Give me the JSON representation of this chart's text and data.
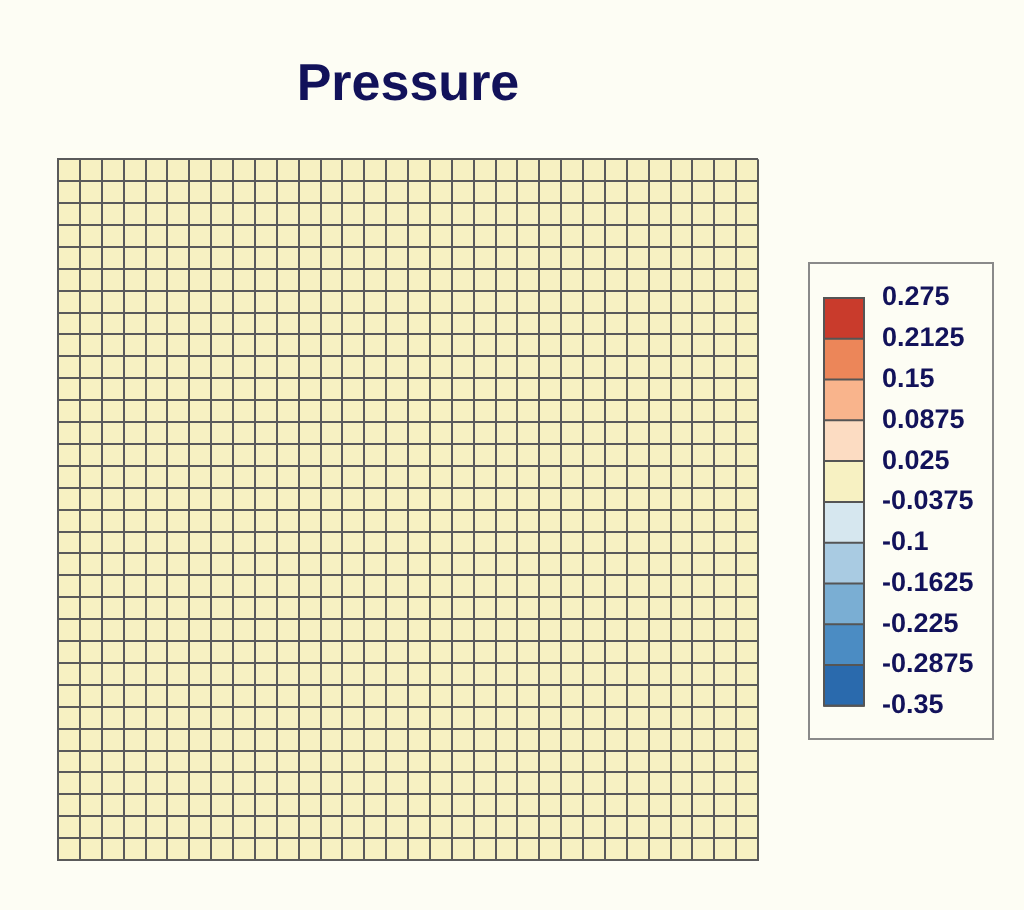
{
  "chart_data": {
    "type": "heatmap",
    "title": "Pressure",
    "categories": [
      null,
      null,
      null,
      null,
      null,
      null,
      null,
      null,
      null,
      null,
      null,
      null,
      null,
      null,
      null,
      null,
      null,
      null,
      null,
      null,
      null,
      null,
      null,
      null,
      null,
      null,
      null,
      null,
      null,
      null,
      null,
      null
    ],
    "y_categories": [
      null,
      null,
      null,
      null,
      null,
      null,
      null,
      null,
      null,
      null,
      null,
      null,
      null,
      null,
      null,
      null,
      null,
      null,
      null,
      null,
      null,
      null,
      null,
      null,
      null,
      null,
      null,
      null,
      null,
      null,
      null,
      null
    ],
    "cells": [
      [
        0,
        0,
        0,
        0,
        0,
        0,
        0,
        0,
        0,
        0,
        0,
        0,
        0,
        0,
        0,
        0,
        0,
        0,
        0,
        0,
        0,
        0,
        0,
        0,
        0,
        0,
        0,
        0,
        0,
        0,
        0,
        0
      ],
      [
        0,
        0,
        0,
        0,
        0,
        0,
        0,
        0,
        0,
        0,
        0,
        0,
        0,
        0,
        0,
        0,
        0,
        0,
        0,
        0,
        0,
        0,
        0,
        0,
        0,
        0,
        0,
        0,
        0,
        0,
        0,
        0
      ],
      [
        0,
        0,
        0,
        0,
        0,
        0,
        0,
        0,
        0,
        0,
        0,
        0,
        0,
        0,
        0,
        0,
        0,
        0,
        0,
        0,
        0,
        0,
        0,
        0,
        0,
        0,
        0,
        0,
        0,
        0,
        0,
        0
      ],
      [
        0,
        0,
        0,
        0,
        0,
        0,
        0,
        0,
        0,
        0,
        0,
        0,
        0,
        0,
        0,
        0,
        0,
        0,
        0,
        0,
        0,
        0,
        0,
        0,
        0,
        0,
        0,
        0,
        0,
        0,
        0,
        0
      ],
      [
        0,
        0,
        0,
        0,
        0,
        0,
        0,
        0,
        0,
        0,
        0,
        0,
        0,
        0,
        0,
        0,
        0,
        0,
        0,
        0,
        0,
        0,
        0,
        0,
        0,
        0,
        0,
        0,
        0,
        0,
        0,
        0
      ],
      [
        0,
        0,
        0,
        0,
        0,
        0,
        0,
        0,
        0,
        0,
        0,
        0,
        0,
        0,
        0,
        0,
        0,
        0,
        0,
        0,
        0,
        0,
        0,
        0,
        0,
        0,
        0,
        0,
        0,
        0,
        0,
        0
      ],
      [
        0,
        0,
        0,
        0,
        0,
        0,
        0,
        0,
        0,
        0,
        0,
        0,
        0,
        0,
        0,
        0,
        0,
        0,
        0,
        0,
        0,
        0,
        0,
        0,
        0,
        0,
        0,
        0,
        0,
        0,
        0,
        0
      ],
      [
        0,
        0,
        0,
        0,
        0,
        0,
        0,
        0,
        0,
        0,
        0,
        0,
        0,
        0,
        0,
        0,
        0,
        0,
        0,
        0,
        0,
        0,
        0,
        0,
        0,
        0,
        0,
        0,
        0,
        0,
        0,
        0
      ],
      [
        0,
        0,
        0,
        0,
        0,
        0,
        0,
        0,
        0,
        0,
        0,
        0,
        0,
        0,
        0,
        0,
        0,
        0,
        0,
        0,
        0,
        0,
        0,
        0,
        0,
        0,
        0,
        0,
        0,
        0,
        0,
        0
      ],
      [
        0,
        0,
        0,
        0,
        0,
        0,
        0,
        0,
        0,
        0,
        0,
        0,
        0,
        0,
        0,
        0,
        0,
        0,
        0,
        0,
        0,
        0,
        0,
        0,
        0,
        0,
        0,
        0,
        0,
        0,
        0,
        0
      ],
      [
        0,
        0,
        0,
        0,
        0,
        0,
        0,
        0,
        0,
        0,
        0,
        0,
        0,
        0,
        0,
        0,
        0,
        0,
        0,
        0,
        0,
        0,
        0,
        0,
        0,
        0,
        0,
        0,
        0,
        0,
        0,
        0
      ],
      [
        0,
        0,
        0,
        0,
        0,
        0,
        0,
        0,
        0,
        0,
        0,
        0,
        0,
        0,
        0,
        0,
        0,
        0,
        0,
        0,
        0,
        0,
        0,
        0,
        0,
        0,
        0,
        0,
        0,
        0,
        0,
        0
      ],
      [
        0,
        0,
        0,
        0,
        0,
        0,
        0,
        0,
        0,
        0,
        0,
        0,
        0,
        0,
        0,
        0,
        0,
        0,
        0,
        0,
        0,
        0,
        0,
        0,
        0,
        0,
        0,
        0,
        0,
        0,
        0,
        0
      ],
      [
        0,
        0,
        0,
        0,
        0,
        0,
        0,
        0,
        0,
        0,
        0,
        0,
        0,
        0,
        0,
        0,
        0,
        0,
        0,
        0,
        0,
        0,
        0,
        0,
        0,
        0,
        0,
        0,
        0,
        0,
        0,
        0
      ],
      [
        0,
        0,
        0,
        0,
        0,
        0,
        0,
        0,
        0,
        0,
        0,
        0,
        0,
        0,
        0,
        0,
        0,
        0,
        0,
        0,
        0,
        0,
        0,
        0,
        0,
        0,
        0,
        0,
        0,
        0,
        0,
        0
      ],
      [
        0,
        0,
        0,
        0,
        0,
        0,
        0,
        0,
        0,
        0,
        0,
        0,
        0,
        0,
        0,
        0,
        0,
        0,
        0,
        0,
        0,
        0,
        0,
        0,
        0,
        0,
        0,
        0,
        0,
        0,
        0,
        0
      ],
      [
        0,
        0,
        0,
        0,
        0,
        0,
        0,
        0,
        0,
        0,
        0,
        0,
        0,
        0,
        0,
        0,
        0,
        0,
        0,
        0,
        0,
        0,
        0,
        0,
        0,
        0,
        0,
        0,
        0,
        0,
        0,
        0
      ],
      [
        0,
        0,
        0,
        0,
        0,
        0,
        0,
        0,
        0,
        0,
        0,
        0,
        0,
        0,
        0,
        0,
        0,
        0,
        0,
        0,
        0,
        0,
        0,
        0,
        0,
        0,
        0,
        0,
        0,
        0,
        0,
        0
      ],
      [
        0,
        0,
        0,
        0,
        0,
        0,
        0,
        0,
        0,
        0,
        0,
        0,
        0,
        0,
        0,
        0,
        0,
        0,
        0,
        0,
        0,
        0,
        0,
        0,
        0,
        0,
        0,
        0,
        0,
        0,
        0,
        0
      ],
      [
        0,
        0,
        0,
        0,
        0,
        0,
        0,
        0,
        0,
        0,
        0,
        0,
        0,
        0,
        0,
        0,
        0,
        0,
        0,
        0,
        0,
        0,
        0,
        0,
        0,
        0,
        0,
        0,
        0,
        0,
        0,
        0
      ],
      [
        0,
        0,
        0,
        0,
        0,
        0,
        0,
        0,
        0,
        0,
        0,
        0,
        0,
        0,
        0,
        0,
        0,
        0,
        0,
        0,
        0,
        0,
        0,
        0,
        0,
        0,
        0,
        0,
        0,
        0,
        0,
        0
      ],
      [
        0,
        0,
        0,
        0,
        0,
        0,
        0,
        0,
        0,
        0,
        0,
        0,
        0,
        0,
        0,
        0,
        0,
        0,
        0,
        0,
        0,
        0,
        0,
        0,
        0,
        0,
        0,
        0,
        0,
        0,
        0,
        0
      ],
      [
        0,
        0,
        0,
        0,
        0,
        0,
        0,
        0,
        0,
        0,
        0,
        0,
        0,
        0,
        0,
        0,
        0,
        0,
        0,
        0,
        0,
        0,
        0,
        0,
        0,
        0,
        0,
        0,
        0,
        0,
        0,
        0
      ],
      [
        0,
        0,
        0,
        0,
        0,
        0,
        0,
        0,
        0,
        0,
        0,
        0,
        0,
        0,
        0,
        0,
        0,
        0,
        0,
        0,
        0,
        0,
        0,
        0,
        0,
        0,
        0,
        0,
        0,
        0,
        0,
        0
      ],
      [
        0,
        0,
        0,
        0,
        0,
        0,
        0,
        0,
        0,
        0,
        0,
        0,
        0,
        0,
        0,
        0,
        0,
        0,
        0,
        0,
        0,
        0,
        0,
        0,
        0,
        0,
        0,
        0,
        0,
        0,
        0,
        0
      ],
      [
        0,
        0,
        0,
        0,
        0,
        0,
        0,
        0,
        0,
        0,
        0,
        0,
        0,
        0,
        0,
        0,
        0,
        0,
        0,
        0,
        0,
        0,
        0,
        0,
        0,
        0,
        0,
        0,
        0,
        0,
        0,
        0
      ],
      [
        0,
        0,
        0,
        0,
        0,
        0,
        0,
        0,
        0,
        0,
        0,
        0,
        0,
        0,
        0,
        0,
        0,
        0,
        0,
        0,
        0,
        0,
        0,
        0,
        0,
        0,
        0,
        0,
        0,
        0,
        0,
        0
      ],
      [
        0,
        0,
        0,
        0,
        0,
        0,
        0,
        0,
        0,
        0,
        0,
        0,
        0,
        0,
        0,
        0,
        0,
        0,
        0,
        0,
        0,
        0,
        0,
        0,
        0,
        0,
        0,
        0,
        0,
        0,
        0,
        0
      ],
      [
        0,
        0,
        0,
        0,
        0,
        0,
        0,
        0,
        0,
        0,
        0,
        0,
        0,
        0,
        0,
        0,
        0,
        0,
        0,
        0,
        0,
        0,
        0,
        0,
        0,
        0,
        0,
        0,
        0,
        0,
        0,
        0
      ],
      [
        0,
        0,
        0,
        0,
        0,
        0,
        0,
        0,
        0,
        0,
        0,
        0,
        0,
        0,
        0,
        0,
        0,
        0,
        0,
        0,
        0,
        0,
        0,
        0,
        0,
        0,
        0,
        0,
        0,
        0,
        0,
        0
      ],
      [
        0,
        0,
        0,
        0,
        0,
        0,
        0,
        0,
        0,
        0,
        0,
        0,
        0,
        0,
        0,
        0,
        0,
        0,
        0,
        0,
        0,
        0,
        0,
        0,
        0,
        0,
        0,
        0,
        0,
        0,
        0,
        0
      ],
      [
        0,
        0,
        0,
        0,
        0,
        0,
        0,
        0,
        0,
        0,
        0,
        0,
        0,
        0,
        0,
        0,
        0,
        0,
        0,
        0,
        0,
        0,
        0,
        0,
        0,
        0,
        0,
        0,
        0,
        0,
        0,
        0
      ]
    ],
    "clim": [
      -0.35,
      0.275
    ],
    "cticks": [
      -0.35,
      -0.2875,
      -0.225,
      -0.1625,
      -0.1,
      -0.0375,
      0.025,
      0.0875,
      0.15,
      0.2125,
      0.275
    ],
    "grid": true
  }
}
